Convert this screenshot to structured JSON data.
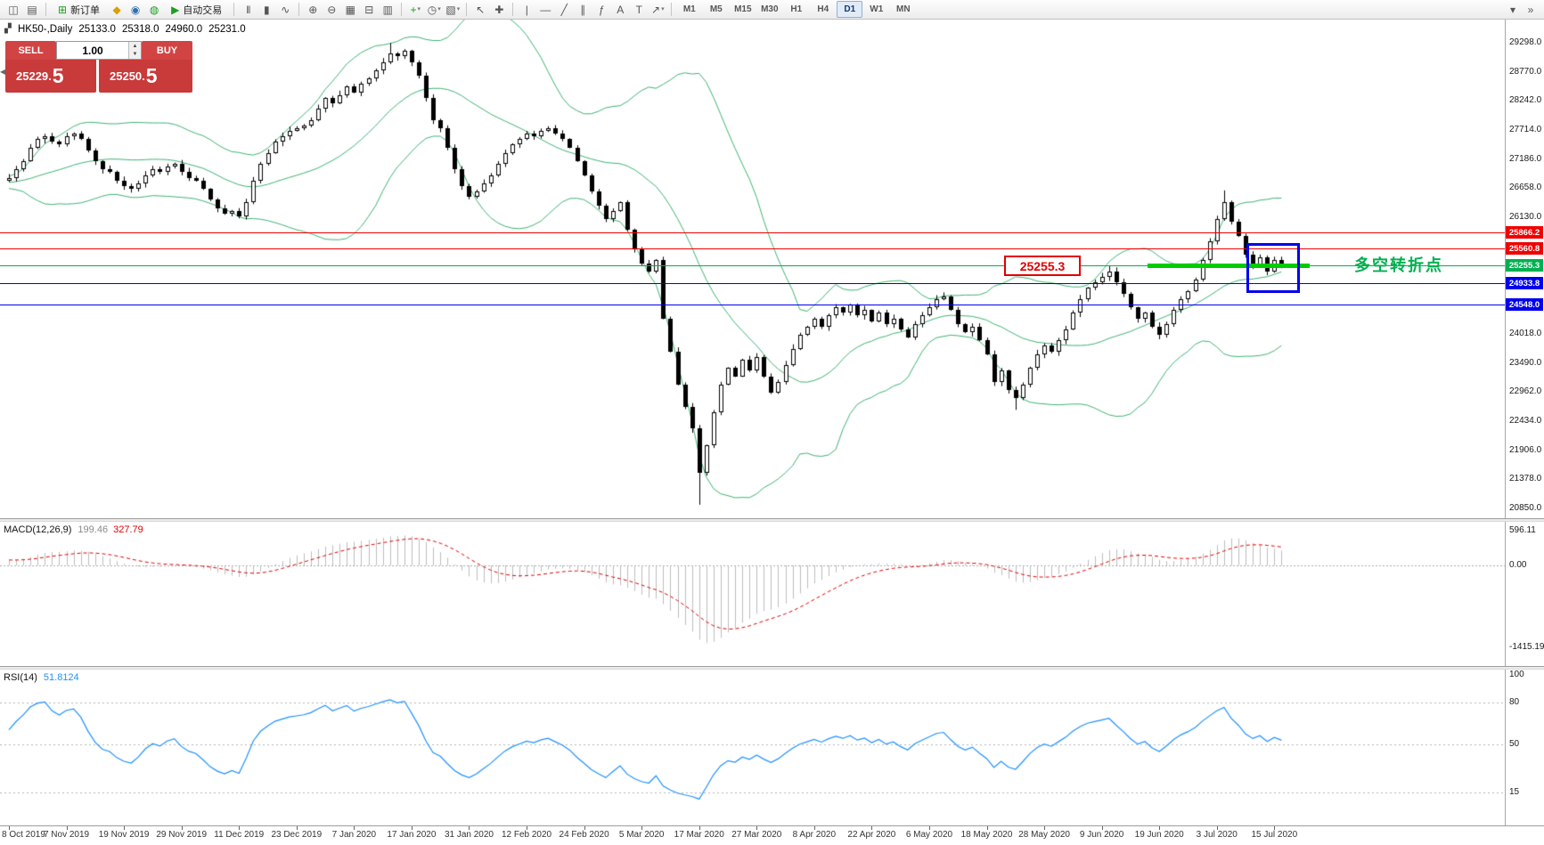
{
  "toolbar": {
    "new_order_label": "新订单",
    "autotrading_label": "自动交易",
    "timeframes": [
      "M1",
      "M5",
      "M15",
      "M30",
      "H1",
      "H4",
      "D1",
      "W1",
      "MN"
    ],
    "active_timeframe": "D1"
  },
  "icons": {
    "new_chart": "◫",
    "profiles": "▤",
    "new_order": "⊞",
    "metaeditor": "◆",
    "community": "◉",
    "market": "◍",
    "play": "▶",
    "bars": "|||",
    "candles": "▮",
    "linechart": "∿",
    "zoom_in": "⊕",
    "zoom_out": "⊖",
    "tile": "▦",
    "navigator": "⊟",
    "data_window": "▥",
    "indicators": "+",
    "periods": "◷",
    "templates": "▧",
    "cursor": "↖",
    "crosshair": "✚",
    "vline": "|",
    "hline": "—",
    "trendline": "╱",
    "channel": "∥",
    "fib": "ƒ",
    "text": "A",
    "label": "T",
    "arrows": "↗",
    "overflow": "»",
    "dropdown": "▾"
  },
  "chart_header": {
    "symbol_period": "HK50-,Daily",
    "open": "25133.0",
    "high": "25318.0",
    "low": "24960.0",
    "close": "25231.0"
  },
  "one_click": {
    "sell_label": "SELL",
    "buy_label": "BUY",
    "volume": "1.00",
    "sell_price_main": "25229.",
    "sell_price_big": "5",
    "buy_price_main": "25250.",
    "buy_price_big": "5"
  },
  "annotations": {
    "lines": [
      {
        "price": 25866.2,
        "label": "25866.2",
        "color": "#ef0000",
        "kind": "resistance"
      },
      {
        "price": 25560.8,
        "label": "25560.8",
        "color": "#ef0000",
        "kind": "resistance"
      },
      {
        "price": 25255.3,
        "label": "25255.3",
        "color": "#00b050",
        "kind": "pivot"
      },
      {
        "price": 24933.8,
        "label": "24933.8",
        "color": "#0000ee",
        "kind": "support"
      },
      {
        "price": 24548.0,
        "label": "24548.0",
        "color": "#0000ee",
        "kind": "support"
      }
    ],
    "callout_label": "25255.3",
    "note_text": "多空转折点",
    "note_color": "#00b050",
    "thick_segment": {
      "price": 25255.3,
      "color": "#00cc00"
    },
    "highlight_box_color": "#0000ee"
  },
  "macd_panel": {
    "title": "MACD(12,26,9)",
    "value_main": "199.46",
    "value_signal": "327.79"
  },
  "rsi_panel": {
    "title": "RSI(14)",
    "value": "51.8124"
  },
  "chart_data": {
    "type": "candlestick",
    "symbol": "HK50-",
    "period": "Daily",
    "current_ohlc": {
      "open": 25133.0,
      "high": 25318.0,
      "low": 24960.0,
      "close": 25231.0
    },
    "level_lines": [
      25866.2,
      25560.8,
      25255.3,
      24933.8,
      24548.0
    ],
    "y_ticks": [
      {
        "label": "29298.0",
        "value": 29298
      },
      {
        "label": "28770.0",
        "value": 28770
      },
      {
        "label": "28242.0",
        "value": 28242
      },
      {
        "label": "27714.0",
        "value": 27714
      },
      {
        "label": "27186.0",
        "value": 27186
      },
      {
        "label": "26658.0",
        "value": 26658
      },
      {
        "label": "26130.0",
        "value": 26130
      },
      {
        "label": "24018.0",
        "value": 24018
      },
      {
        "label": "23490.0",
        "value": 23490
      },
      {
        "label": "22962.0",
        "value": 22962
      },
      {
        "label": "22434.0",
        "value": 22434
      },
      {
        "label": "21906.0",
        "value": 21906
      },
      {
        "label": "21378.0",
        "value": 21378
      },
      {
        "label": "20850.0",
        "value": 20850
      }
    ],
    "x_tick_labels": [
      "8 Oct 2019",
      "7 Nov 2019",
      "19 Nov 2019",
      "29 Nov 2019",
      "11 Dec 2019",
      "23 Dec 2019",
      "7 Jan 2020",
      "17 Jan 2020",
      "31 Jan 2020",
      "12 Feb 2020",
      "24 Feb 2020",
      "5 Mar 2020",
      "17 Mar 2020",
      "27 Mar 2020",
      "8 Apr 2020",
      "22 Apr 2020",
      "6 May 2020",
      "18 May 2020",
      "28 May 2020",
      "9 Jun 2020",
      "19 Jun 2020",
      "3 Jul 2020",
      "15 Jul 2020"
    ],
    "bars_per_x_tick": 8,
    "closes": [
      26850,
      27000,
      27150,
      27400,
      27550,
      27600,
      27500,
      27450,
      27600,
      27650,
      27550,
      27350,
      27150,
      27000,
      26950,
      26800,
      26700,
      26650,
      26750,
      26900,
      27000,
      26950,
      27050,
      27100,
      26950,
      26850,
      26800,
      26650,
      26450,
      26300,
      26200,
      26250,
      26150,
      26400,
      26800,
      27100,
      27300,
      27500,
      27600,
      27700,
      27750,
      27800,
      27900,
      28100,
      28300,
      28200,
      28350,
      28500,
      28400,
      28550,
      28650,
      28800,
      28950,
      29100,
      29050,
      29150,
      28950,
      28700,
      28300,
      27900,
      27750,
      27400,
      27000,
      26700,
      26500,
      26600,
      26750,
      26900,
      27100,
      27300,
      27450,
      27550,
      27650,
      27600,
      27700,
      27750,
      27650,
      27550,
      27400,
      27150,
      26900,
      26600,
      26350,
      26100,
      26250,
      26400,
      25900,
      25550,
      25300,
      25150,
      25350,
      24300,
      23700,
      23100,
      22700,
      22300,
      21500,
      22000,
      22600,
      23100,
      23400,
      23250,
      23550,
      23350,
      23600,
      23250,
      22950,
      23150,
      23450,
      23750,
      24000,
      24150,
      24300,
      24150,
      24350,
      24500,
      24400,
      24550,
      24350,
      24450,
      24250,
      24400,
      24200,
      24300,
      24100,
      23950,
      24200,
      24350,
      24500,
      24650,
      24700,
      24450,
      24200,
      24050,
      24150,
      23900,
      23650,
      23150,
      23350,
      23000,
      22850,
      23100,
      23400,
      23650,
      23800,
      23700,
      23900,
      24100,
      24400,
      24650,
      24850,
      24950,
      25050,
      25150,
      24950,
      24750,
      24500,
      24300,
      24400,
      24150,
      24000,
      24200,
      24450,
      24650,
      24800,
      25000,
      25350,
      25700,
      26100,
      26400,
      26050,
      25800,
      25450,
      25250,
      25400,
      25150,
      25350,
      25231
    ],
    "pre_closes": [
      26200,
      26150,
      26300,
      26250,
      26350,
      26300,
      26400,
      26350,
      26450,
      26400,
      26300,
      26250,
      26400,
      26350,
      26500,
      26450,
      26600,
      26550,
      26500,
      26650,
      26600,
      26700,
      26650,
      26750,
      26700,
      26800,
      26750,
      26700,
      26800,
      26750,
      26850,
      26800,
      26750,
      26700,
      26750,
      26800,
      26850,
      26800,
      26750,
      26800
    ],
    "wick_overrides": [
      {
        "index": 53,
        "high": 29295
      },
      {
        "index": 96,
        "low": 20920
      },
      {
        "index": 140,
        "low": 22640
      },
      {
        "index": 153,
        "high": 25260
      },
      {
        "index": 169,
        "high": 26620
      }
    ],
    "indicators": {
      "bollinger": {
        "period": 20,
        "deviation": 2,
        "color": "#3cb371"
      },
      "macd": {
        "fast": 12,
        "slow": 26,
        "signal": 9,
        "hist_color": "#bcbcbc",
        "signal_color": "#e00000"
      },
      "rsi": {
        "period": 14,
        "color": "#1e90ff"
      }
    },
    "macd_axis_ticks": [
      {
        "label": "596.11",
        "value": 596.11
      },
      {
        "label": "0.00",
        "value": 0
      },
      {
        "label": "-1415.19",
        "value": -1415.19
      }
    ],
    "rsi_axis_ticks": [
      {
        "label": "100",
        "value": 100
      },
      {
        "label": "80",
        "value": 80
      },
      {
        "label": "50",
        "value": 50
      },
      {
        "label": "15",
        "value": 15
      }
    ],
    "rsi_levels": [
      80,
      50,
      15
    ]
  }
}
